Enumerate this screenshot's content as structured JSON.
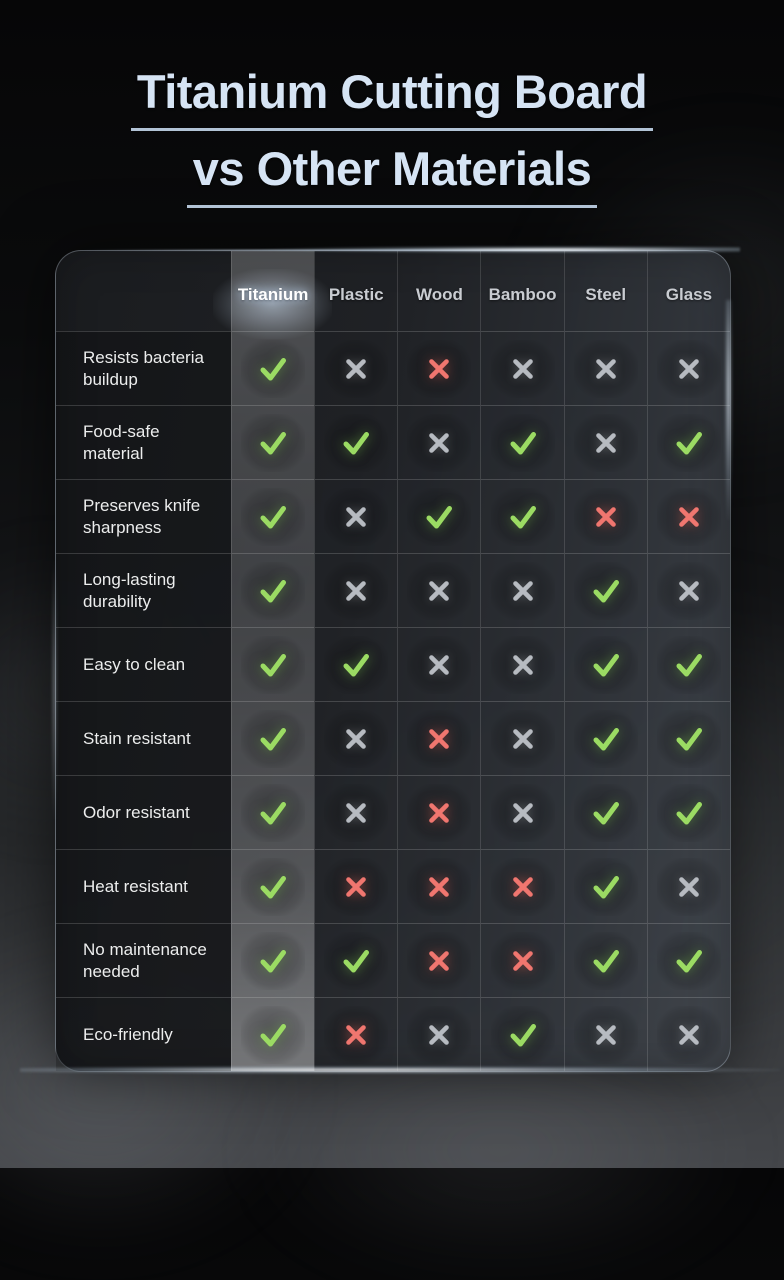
{
  "title": {
    "line1": "Titanium Cutting Board",
    "line2": "vs Other Materials"
  },
  "colors": {
    "title_text": "#d6e4f4",
    "title_underline": "#b2c3d6",
    "check": "#9bdb63",
    "x_red": "#f0766f",
    "x_gray": "#b7bbc1",
    "header_text": "#c9ccd1",
    "highlight_header_text": "#ffffff"
  },
  "icons": {
    "check": "check-icon",
    "x_red": "x-icon",
    "x_gray": "x-icon"
  },
  "chart_data": {
    "type": "table",
    "title": "Titanium Cutting Board vs Other Materials",
    "highlighted_column": "Titanium",
    "columns": [
      "Titanium",
      "Plastic",
      "Wood",
      "Bamboo",
      "Steel",
      "Glass"
    ],
    "row_labels": [
      "Resists bacteria buildup",
      "Food-safe material",
      "Preserves knife sharpness",
      "Long-lasting durability",
      "Easy to clean",
      "Stain resistant",
      "Odor resistant",
      "Heat resistant",
      "No maintenance needed",
      "Eco-friendly"
    ],
    "values": [
      [
        "check",
        "x_gray",
        "x_red",
        "x_gray",
        "x_gray",
        "x_gray"
      ],
      [
        "check",
        "check",
        "x_gray",
        "check",
        "x_gray",
        "check"
      ],
      [
        "check",
        "x_gray",
        "check",
        "check",
        "x_red",
        "x_red"
      ],
      [
        "check",
        "x_gray",
        "x_gray",
        "x_gray",
        "check",
        "x_gray"
      ],
      [
        "check",
        "check",
        "x_gray",
        "x_gray",
        "check",
        "check"
      ],
      [
        "check",
        "x_gray",
        "x_red",
        "x_gray",
        "check",
        "check"
      ],
      [
        "check",
        "x_gray",
        "x_red",
        "x_gray",
        "check",
        "check"
      ],
      [
        "check",
        "x_red",
        "x_red",
        "x_red",
        "check",
        "x_gray"
      ],
      [
        "check",
        "check",
        "x_red",
        "x_red",
        "check",
        "check"
      ],
      [
        "check",
        "x_red",
        "x_gray",
        "check",
        "x_gray",
        "x_gray"
      ]
    ],
    "legend": {
      "check": "yes (green check)",
      "x_red": "no (red cross)",
      "x_gray": "no (gray cross)"
    }
  }
}
